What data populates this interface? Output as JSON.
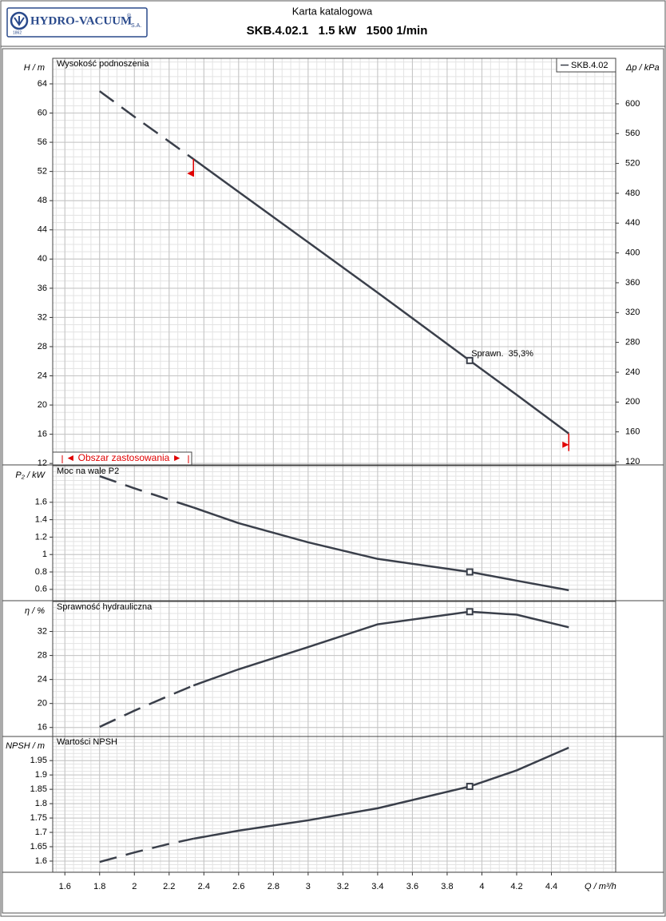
{
  "header": {
    "logo": "HYDRO-VACUUM",
    "logo_mark": "®",
    "logo_suffix": "S.A.",
    "logo_year": "1862",
    "title": "Karta katalogowa",
    "subtitle": "SKB.4.02.1   1.5 kW   1500 1/min"
  },
  "chart_data": [
    {
      "type": "line",
      "title": "Wysokość podnoszenia",
      "ylabel": "H / m",
      "y2label": "Δp / kPa",
      "x": [
        1.8,
        2.0,
        2.2,
        2.34,
        2.6,
        3.0,
        3.4,
        3.93,
        4.2,
        4.5
      ],
      "xlim": [
        1.53,
        4.77
      ],
      "series": [
        {
          "name": "SKB.4.02",
          "color": "#3a3f4a",
          "values": [
            63,
            59.5,
            56.1,
            53.7,
            49.2,
            42.3,
            35.4,
            26.1,
            21.4,
            16.1
          ]
        }
      ],
      "ylim": [
        11.8,
        67.5
      ],
      "yticks": [
        12,
        16,
        20,
        24,
        28,
        32,
        36,
        40,
        44,
        48,
        52,
        56,
        60,
        64
      ],
      "y2lim": [
        115.7,
        661
      ],
      "y2ticks": [
        120,
        160,
        200,
        240,
        280,
        320,
        360,
        400,
        440,
        480,
        520,
        560,
        600
      ],
      "grid": true,
      "legend": "upper right",
      "operating_point": {
        "x": 3.93,
        "label": "Sprawn.  35,3%"
      },
      "application_range": [
        2.34,
        4.5
      ],
      "application_label": "◄ Obszar zastosowania ►",
      "application_color": "#e00000"
    },
    {
      "type": "line",
      "title": "Moc na wale P2",
      "ylabel": "P₂ / kW",
      "x": [
        1.8,
        2.0,
        2.2,
        2.34,
        2.6,
        3.0,
        3.4,
        3.93,
        4.2,
        4.5
      ],
      "xlim": [
        1.53,
        4.77
      ],
      "color": "#3a3f4a",
      "values": [
        1.9,
        1.76,
        1.63,
        1.54,
        1.36,
        1.14,
        0.95,
        0.8,
        0.7,
        0.59
      ],
      "ylim": [
        0.47,
        2.02
      ],
      "yticks": [
        0.6,
        0.8,
        1,
        1.2,
        1.4,
        1.6
      ],
      "grid": true
    },
    {
      "type": "line",
      "title": "Sprawność hydrauliczna",
      "ylabel": "η / %",
      "x": [
        1.8,
        2.0,
        2.2,
        2.34,
        2.6,
        3.0,
        3.4,
        3.93,
        4.2,
        4.5
      ],
      "xlim": [
        1.53,
        4.77
      ],
      "color": "#3a3f4a",
      "values": [
        16.1,
        18.8,
        21.3,
        23,
        25.7,
        29.4,
        33.2,
        35.3,
        34.8,
        32.7
      ],
      "ylim": [
        14.5,
        37
      ],
      "yticks": [
        16,
        20,
        24,
        28,
        32
      ],
      "grid": true
    },
    {
      "type": "line",
      "title": "Wartości NPSH",
      "ylabel": "NPSH / m",
      "xlabel": "Q / m³/h",
      "x": [
        1.8,
        2.0,
        2.2,
        2.34,
        2.6,
        3.0,
        3.4,
        3.93,
        4.2,
        4.5
      ],
      "xlim": [
        1.53,
        4.77
      ],
      "xticks": [
        1.6,
        1.8,
        2,
        2.2,
        2.4,
        2.6,
        2.8,
        3,
        3.2,
        3.4,
        3.6,
        3.8,
        4,
        4.2,
        4.4
      ],
      "color": "#3a3f4a",
      "values": [
        1.597,
        1.63,
        1.66,
        1.678,
        1.706,
        1.742,
        1.784,
        1.86,
        1.916,
        1.995
      ],
      "ylim": [
        1.561,
        2.034
      ],
      "yticks": [
        1.6,
        1.65,
        1.7,
        1.75,
        1.8,
        1.85,
        1.9,
        1.95
      ],
      "grid": true
    }
  ]
}
